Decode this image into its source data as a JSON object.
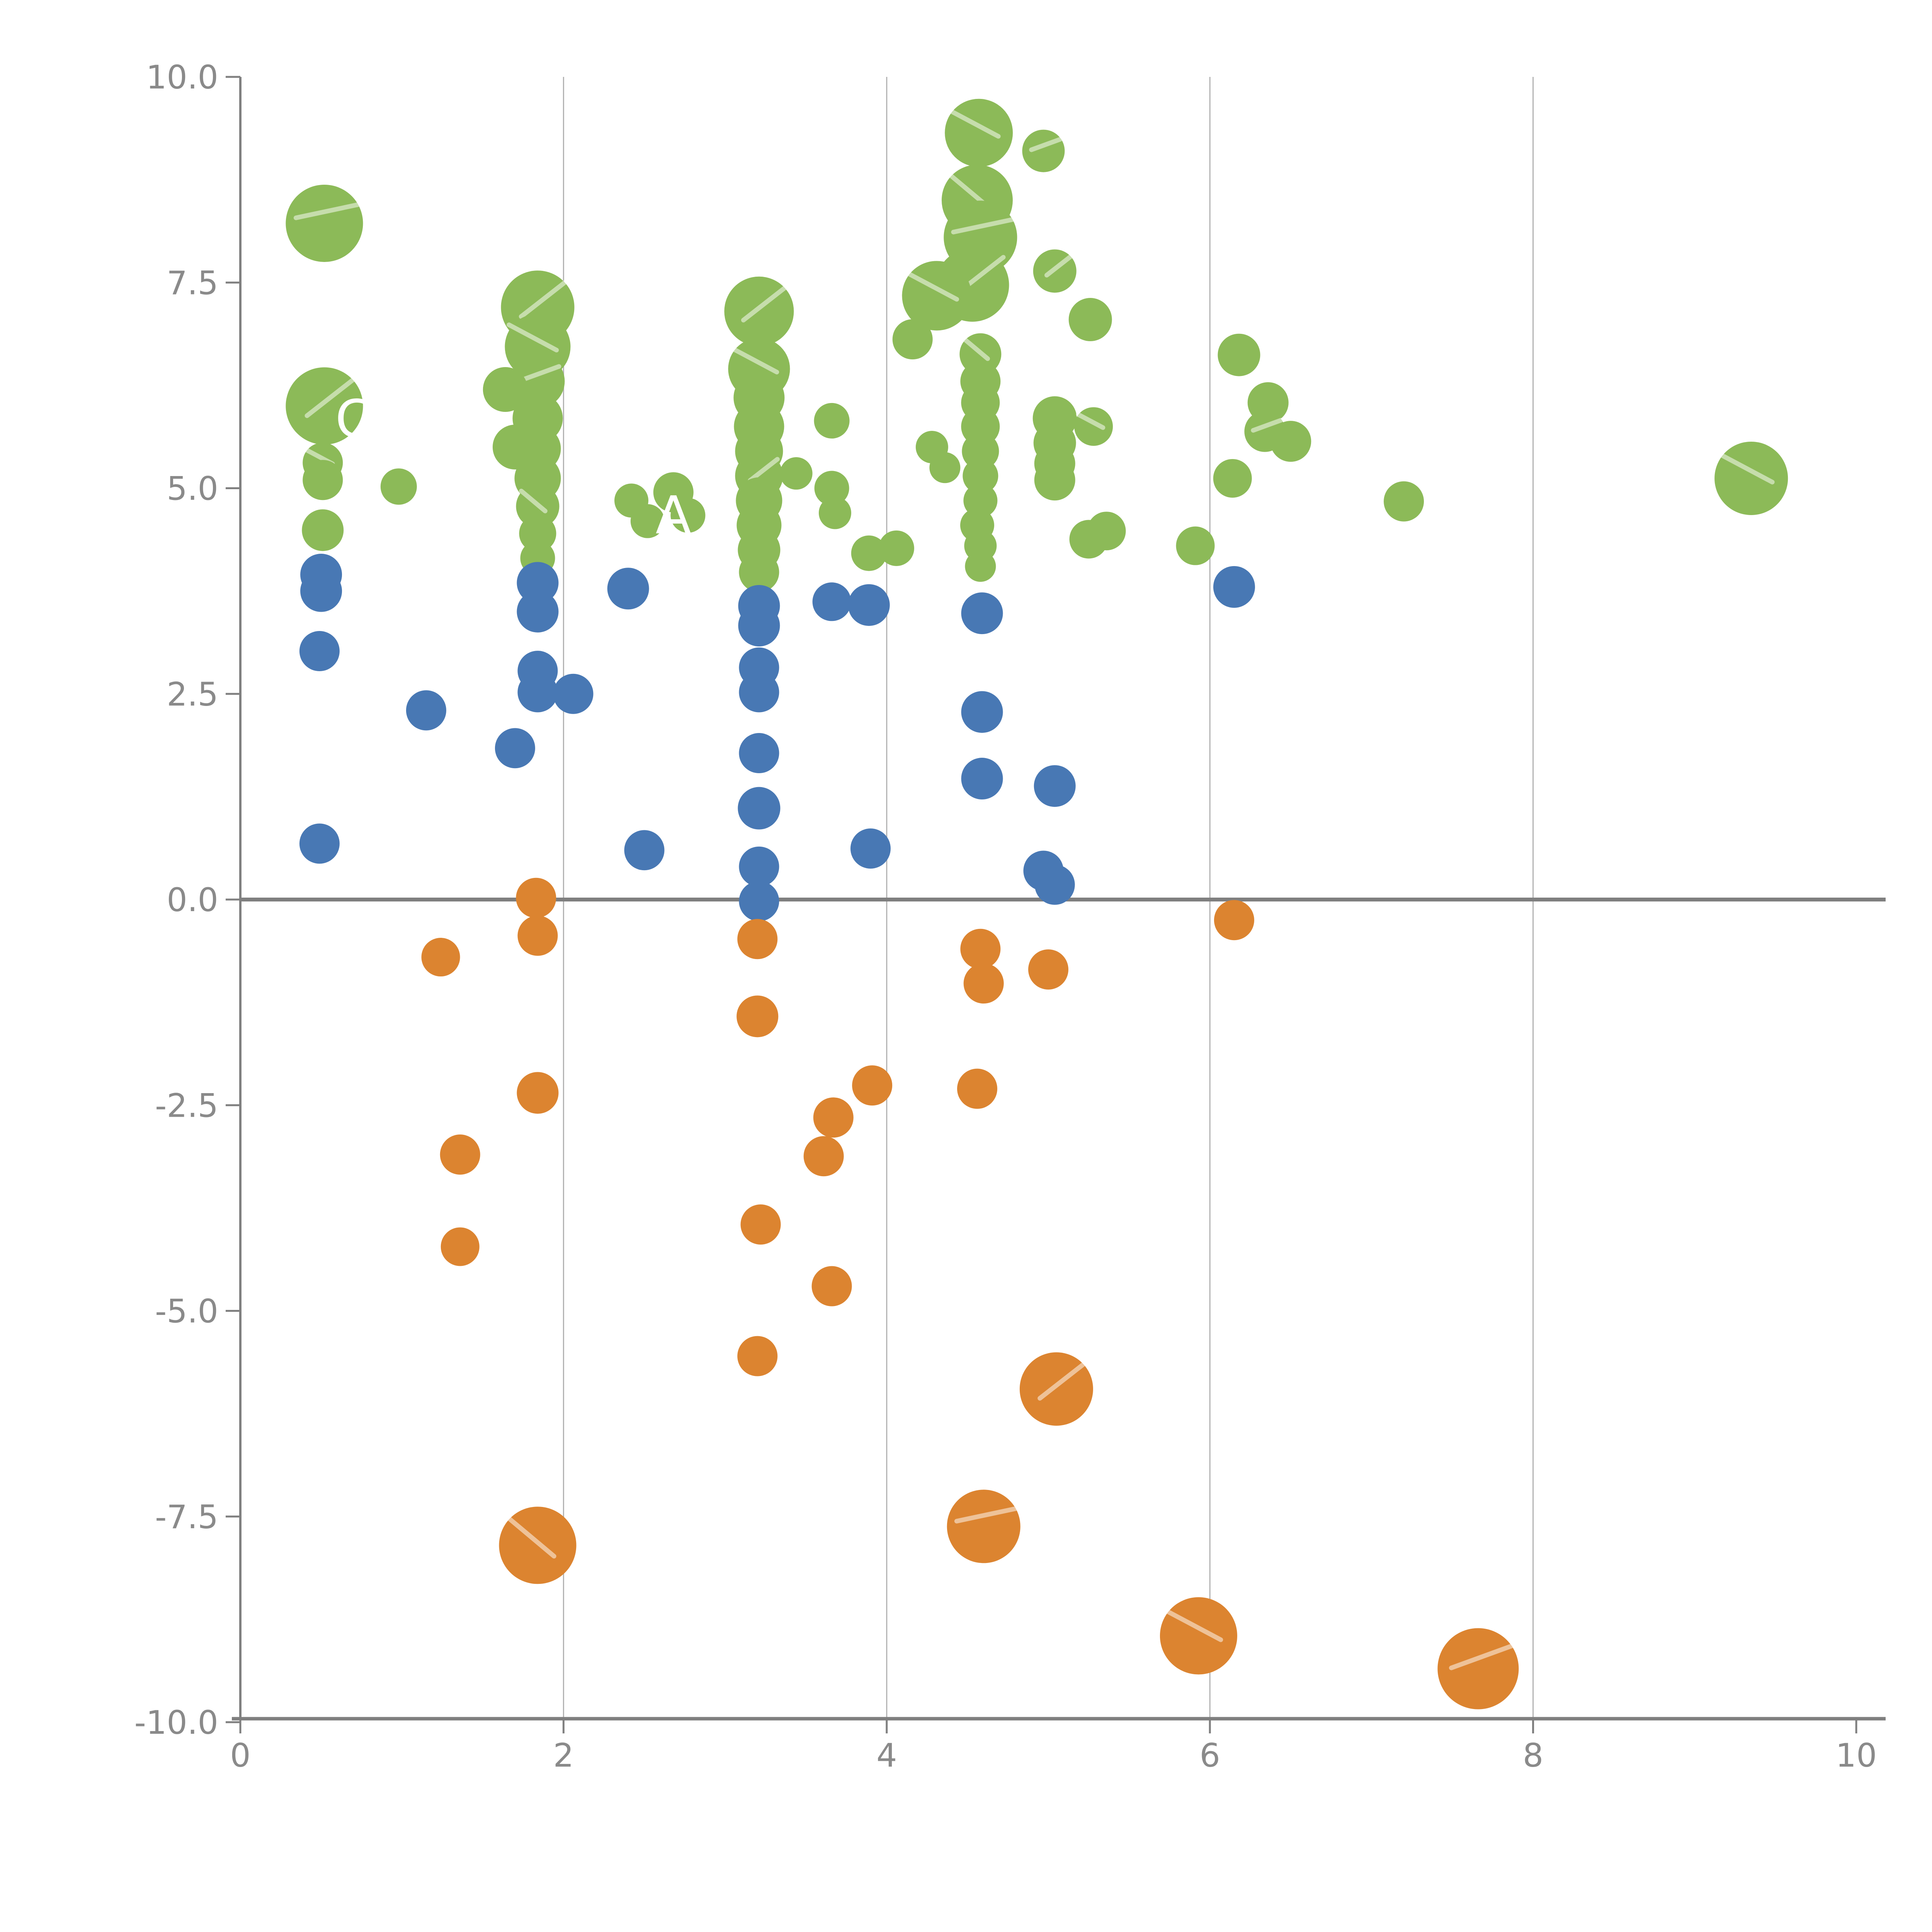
{
  "figure": {
    "background": "#ffffff",
    "axis_color": "#808080",
    "tick_label_color": "#8a8a8a",
    "gridline_color": "#b2b2b2",
    "zero_line_color": "#7f7f7f",
    "hatch_color": "#ffffff"
  },
  "chart_data": {
    "type": "scatter",
    "title": "",
    "xlabel": "",
    "ylabel": "",
    "xlim": [
      0,
      10
    ],
    "ylim": [
      -10,
      10
    ],
    "grid": "vertical",
    "gridline_x_values": [
      2,
      4,
      6,
      8
    ],
    "zero_line_y": 0,
    "legend_position": "none",
    "x_ticks": [
      0,
      2,
      4,
      6,
      8,
      10
    ],
    "x_tick_labels": [
      "0",
      "2",
      "4",
      "6",
      "8",
      "10"
    ],
    "y_ticks": [
      10.0,
      7.5,
      5.0,
      2.5,
      0.0,
      -2.5,
      -5.0,
      -7.5,
      -10.0
    ],
    "y_tick_labels": [
      "10.0",
      "7.5",
      "5.0",
      "2.5",
      "0.0",
      "-2.5",
      "-5.0",
      "-7.5",
      "-10.0"
    ],
    "series": [
      {
        "name": "green",
        "color": "#8CBA58",
        "points": [
          [
            0.52,
            8.22,
            100
          ],
          [
            0.52,
            6.0,
            100
          ],
          [
            0.51,
            5.31,
            52
          ],
          [
            0.51,
            5.1,
            52
          ],
          [
            0.51,
            4.49,
            54
          ],
          [
            0.98,
            5.02,
            47
          ],
          [
            1.84,
            7.2,
            95
          ],
          [
            1.84,
            6.72,
            85
          ],
          [
            1.84,
            6.3,
            70
          ],
          [
            1.64,
            6.2,
            58
          ],
          [
            1.84,
            5.85,
            65
          ],
          [
            1.7,
            5.5,
            58
          ],
          [
            1.84,
            5.48,
            60
          ],
          [
            1.84,
            5.12,
            60
          ],
          [
            1.84,
            4.78,
            56
          ],
          [
            1.84,
            4.45,
            48
          ],
          [
            1.84,
            4.15,
            45
          ],
          [
            2.42,
            4.85,
            44
          ],
          [
            2.52,
            4.6,
            44
          ],
          [
            2.68,
            4.95,
            52
          ],
          [
            2.77,
            4.67,
            45
          ],
          [
            3.21,
            7.15,
            90
          ],
          [
            3.21,
            6.45,
            80
          ],
          [
            3.21,
            6.1,
            66
          ],
          [
            3.21,
            5.75,
            65
          ],
          [
            3.21,
            5.45,
            62
          ],
          [
            3.21,
            5.15,
            62
          ],
          [
            3.21,
            4.85,
            60
          ],
          [
            3.21,
            4.55,
            58
          ],
          [
            3.21,
            4.25,
            55
          ],
          [
            3.21,
            3.98,
            52
          ],
          [
            3.44,
            5.18,
            42
          ],
          [
            3.66,
            5.82,
            46
          ],
          [
            3.66,
            5.0,
            45
          ],
          [
            3.68,
            4.7,
            42
          ],
          [
            3.89,
            4.21,
            46
          ],
          [
            4.06,
            4.27,
            46
          ],
          [
            4.57,
            9.32,
            88
          ],
          [
            4.97,
            9.1,
            55
          ],
          [
            4.56,
            8.5,
            92
          ],
          [
            4.58,
            8.05,
            95
          ],
          [
            4.53,
            7.47,
            95
          ],
          [
            4.31,
            7.34,
            90
          ],
          [
            4.16,
            6.81,
            52
          ],
          [
            4.58,
            6.63,
            54
          ],
          [
            4.58,
            6.3,
            52
          ],
          [
            4.58,
            6.04,
            50
          ],
          [
            4.58,
            5.75,
            50
          ],
          [
            4.28,
            5.5,
            42
          ],
          [
            4.58,
            5.45,
            48
          ],
          [
            4.36,
            5.25,
            40
          ],
          [
            4.58,
            5.15,
            46
          ],
          [
            4.58,
            4.85,
            44
          ],
          [
            4.56,
            4.55,
            44
          ],
          [
            4.58,
            4.3,
            42
          ],
          [
            4.58,
            4.05,
            40
          ],
          [
            5.04,
            7.64,
            56
          ],
          [
            5.26,
            7.05,
            56
          ],
          [
            5.04,
            5.85,
            57
          ],
          [
            5.04,
            5.55,
            55
          ],
          [
            5.04,
            5.3,
            53
          ],
          [
            5.04,
            5.1,
            53
          ],
          [
            5.28,
            5.75,
            50
          ],
          [
            5.25,
            4.38,
            50
          ],
          [
            5.36,
            4.48,
            50
          ],
          [
            5.91,
            4.3,
            50
          ],
          [
            6.18,
            6.62,
            55
          ],
          [
            6.36,
            6.04,
            53
          ],
          [
            6.34,
            5.69,
            53
          ],
          [
            6.5,
            5.57,
            53
          ],
          [
            6.14,
            5.12,
            50
          ],
          [
            7.2,
            4.84,
            52
          ],
          [
            9.35,
            5.12,
            95
          ]
        ]
      },
      {
        "name": "blue",
        "color": "#4878B4",
        "points": [
          [
            0.5,
            3.95,
            54
          ],
          [
            0.5,
            3.75,
            54
          ],
          [
            0.49,
            3.02,
            52
          ],
          [
            0.49,
            0.68,
            52
          ],
          [
            1.15,
            2.3,
            52
          ],
          [
            1.7,
            1.84,
            52
          ],
          [
            1.84,
            3.85,
            54
          ],
          [
            1.84,
            3.5,
            54
          ],
          [
            1.84,
            2.78,
            52
          ],
          [
            1.84,
            2.52,
            52
          ],
          [
            2.06,
            2.5,
            52
          ],
          [
            2.4,
            3.78,
            54
          ],
          [
            2.5,
            0.6,
            52
          ],
          [
            3.21,
            3.57,
            54
          ],
          [
            3.21,
            3.33,
            54
          ],
          [
            3.21,
            2.82,
            52
          ],
          [
            3.21,
            2.52,
            52
          ],
          [
            3.21,
            1.78,
            52
          ],
          [
            3.21,
            1.11,
            55
          ],
          [
            3.21,
            0.4,
            52
          ],
          [
            3.21,
            -0.02,
            52
          ],
          [
            3.66,
            3.62,
            50
          ],
          [
            3.89,
            3.58,
            54
          ],
          [
            3.9,
            0.62,
            52
          ],
          [
            4.59,
            3.48,
            54
          ],
          [
            4.59,
            2.28,
            54
          ],
          [
            4.59,
            1.47,
            54
          ],
          [
            5.04,
            1.38,
            54
          ],
          [
            4.97,
            0.35,
            52
          ],
          [
            5.04,
            0.18,
            52
          ],
          [
            6.15,
            3.8,
            54
          ]
        ]
      },
      {
        "name": "orange",
        "color": "#DC8430",
        "points": [
          [
            1.24,
            -0.7,
            50
          ],
          [
            1.83,
            0.02,
            52
          ],
          [
            1.84,
            -0.44,
            52
          ],
          [
            1.84,
            -2.35,
            54
          ],
          [
            1.36,
            -3.1,
            52
          ],
          [
            1.36,
            -4.22,
            50
          ],
          [
            3.2,
            -0.48,
            52
          ],
          [
            3.2,
            -1.42,
            54
          ],
          [
            3.22,
            -3.95,
            52
          ],
          [
            3.2,
            -5.55,
            52
          ],
          [
            3.61,
            -3.12,
            52
          ],
          [
            3.67,
            -2.65,
            52
          ],
          [
            3.66,
            -4.7,
            52
          ],
          [
            3.91,
            -2.26,
            52
          ],
          [
            4.56,
            -2.3,
            52
          ],
          [
            4.58,
            -0.6,
            52
          ],
          [
            4.6,
            -1.02,
            52
          ],
          [
            5.0,
            -0.85,
            52
          ],
          [
            6.15,
            -0.25,
            52
          ],
          [
            1.84,
            -7.85,
            100
          ],
          [
            4.6,
            -7.62,
            95
          ],
          [
            5.05,
            -5.95,
            95
          ],
          [
            5.93,
            -8.95,
            100
          ],
          [
            7.66,
            -9.35,
            105
          ]
        ]
      }
    ],
    "annotations": [
      {
        "text": "C",
        "x": 0.7,
        "y": 5.84
      },
      {
        "text": "A",
        "x": 2.68,
        "y": 4.67
      }
    ]
  }
}
